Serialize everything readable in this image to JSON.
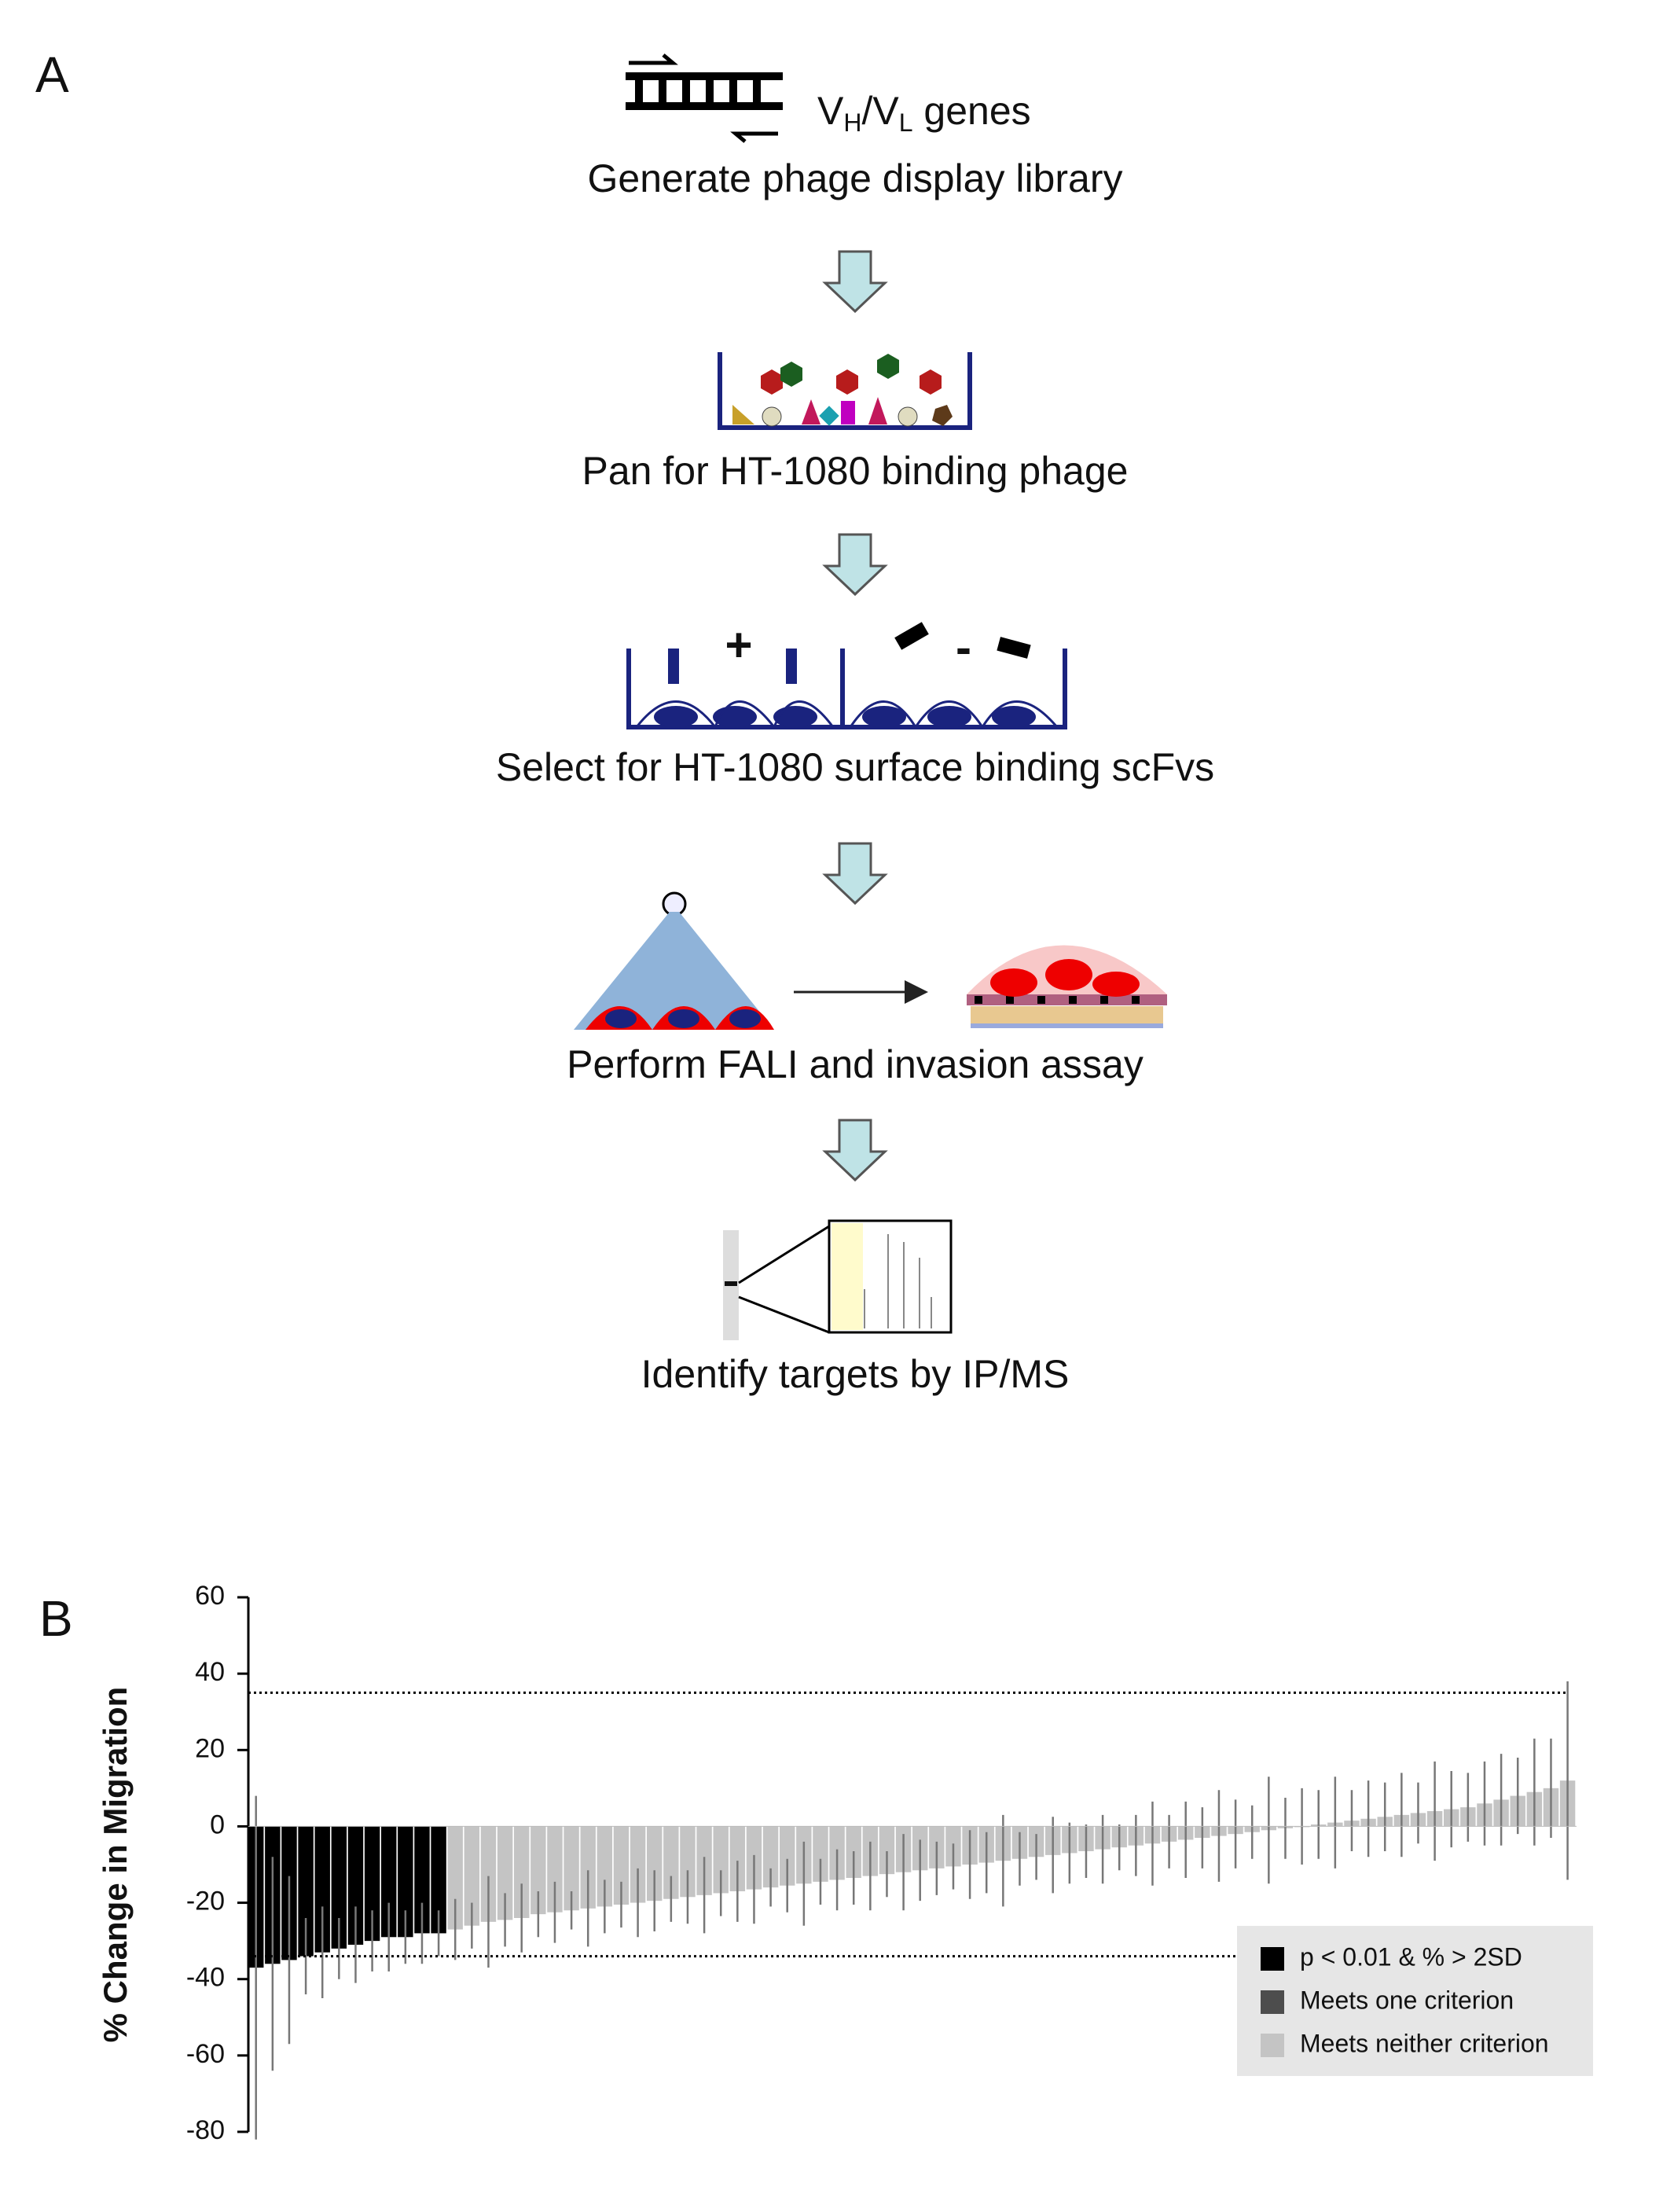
{
  "panel_a": {
    "label": "A",
    "gene_label": {
      "v1": "V",
      "h": "H",
      "slash_v": "/V",
      "l": "L",
      "genes": " genes"
    },
    "steps": [
      "Generate phage display library",
      "Pan for HT-1080 binding phage",
      "Select for HT-1080 surface binding scFvs",
      "Perform FALI and invasion assay",
      "Identify targets by IP/MS"
    ],
    "signs": [
      "+",
      "-"
    ]
  },
  "chart_data": {
    "type": "bar",
    "panel_label": "B",
    "y_label": "% Change in Migration",
    "ylim": [
      -80,
      60
    ],
    "yticks": [
      -80,
      -60,
      -40,
      -20,
      0,
      20,
      40,
      60
    ],
    "hlines": [
      35,
      -34
    ],
    "categories": [
      null,
      null,
      null,
      null,
      null,
      null,
      null,
      null,
      null,
      null,
      null,
      null,
      null,
      null,
      null,
      null,
      null,
      null,
      null,
      null,
      null,
      null,
      null,
      null,
      null,
      null,
      null,
      null,
      null,
      null,
      null,
      null,
      null,
      null,
      null,
      null,
      null,
      null,
      null,
      null,
      null,
      null,
      null,
      null,
      null,
      null,
      null,
      null,
      null,
      null,
      null,
      null,
      null,
      null,
      null,
      null,
      null,
      null,
      null,
      null,
      null,
      null,
      null,
      null,
      null,
      null,
      null,
      null,
      null,
      null,
      null,
      null,
      null,
      null,
      null,
      null,
      null,
      null,
      null,
      null
    ],
    "error_color": "#777777",
    "series": [
      {
        "name": "p < 0.01 & % > 2SD",
        "color": "#000000",
        "values": [
          -37,
          -36,
          -35,
          -34,
          -33,
          -32,
          -31,
          -30,
          -29,
          -29,
          -28,
          -28,
          null,
          null,
          null,
          null,
          null,
          null,
          null,
          null,
          null,
          null,
          null,
          null,
          null,
          null,
          null,
          null,
          null,
          null,
          null,
          null,
          null,
          null,
          null,
          null,
          null,
          null,
          null,
          null,
          null,
          null,
          null,
          null,
          null,
          null,
          null,
          null,
          null,
          null,
          null,
          null,
          null,
          null,
          null,
          null,
          null,
          null,
          null,
          null,
          null,
          null,
          null,
          null,
          null,
          null,
          null,
          null,
          null,
          null,
          null,
          null,
          null,
          null,
          null,
          null,
          null,
          null,
          null,
          null
        ],
        "errors": [
          45,
          28,
          22,
          10,
          12,
          8,
          10,
          8,
          9,
          7,
          8,
          6,
          null,
          null,
          null,
          null,
          null,
          null,
          null,
          null,
          null,
          null,
          null,
          null,
          null,
          null,
          null,
          null,
          null,
          null,
          null,
          null,
          null,
          null,
          null,
          null,
          null,
          null,
          null,
          null,
          null,
          null,
          null,
          null,
          null,
          null,
          null,
          null,
          null,
          null,
          null,
          null,
          null,
          null,
          null,
          null,
          null,
          null,
          null,
          null,
          null,
          null,
          null,
          null,
          null,
          null,
          null,
          null,
          null,
          null,
          null,
          null,
          null,
          null,
          null,
          null,
          null,
          null,
          null,
          null
        ]
      },
      {
        "name": "Meets one criterion",
        "color": "#4d4d4d",
        "values": [
          null,
          null,
          null,
          null,
          null,
          null,
          null,
          null,
          null,
          null,
          null,
          null,
          null,
          null,
          null,
          null,
          null,
          null,
          null,
          null,
          null,
          null,
          null,
          null,
          null,
          null,
          null,
          null,
          null,
          null,
          null,
          null,
          null,
          null,
          null,
          null,
          null,
          null,
          null,
          null,
          null,
          null,
          null,
          null,
          null,
          null,
          null,
          null,
          null,
          null,
          null,
          null,
          null,
          null,
          null,
          null,
          null,
          null,
          null,
          null,
          null,
          null,
          null,
          null,
          null,
          null,
          null,
          null,
          null,
          null,
          null,
          null,
          null,
          null,
          null,
          null,
          null,
          null,
          null,
          null
        ],
        "errors": [
          null,
          null,
          null,
          null,
          null,
          null,
          null,
          null,
          null,
          null,
          null,
          null,
          null,
          null,
          null,
          null,
          null,
          null,
          null,
          null,
          null,
          null,
          null,
          null,
          null,
          null,
          null,
          null,
          null,
          null,
          null,
          null,
          null,
          null,
          null,
          null,
          null,
          null,
          null,
          null,
          null,
          null,
          null,
          null,
          null,
          null,
          null,
          null,
          null,
          null,
          null,
          null,
          null,
          null,
          null,
          null,
          null,
          null,
          null,
          null,
          null,
          null,
          null,
          null,
          null,
          null,
          null,
          null,
          null,
          null,
          null,
          null,
          null,
          null,
          null,
          null,
          null,
          null,
          null,
          null
        ]
      },
      {
        "name": "Meets neither criterion",
        "color": "#c4c4c4",
        "values": [
          null,
          null,
          null,
          null,
          null,
          null,
          null,
          null,
          null,
          null,
          null,
          null,
          -27,
          -26,
          -25,
          -24.5,
          -24,
          -23,
          -22.5,
          -22,
          -21.5,
          -21,
          -20.5,
          -20,
          -19.5,
          -19,
          -18.5,
          -18,
          -17.5,
          -17,
          -16.5,
          -16,
          -15.5,
          -15,
          -14.5,
          -14,
          -13.5,
          -13,
          -12.5,
          -12,
          -11.5,
          -11,
          -10.5,
          -10,
          -9.5,
          -9,
          -8.5,
          -8,
          -7.5,
          -7,
          -6.5,
          -6,
          -5.5,
          -5,
          -4.5,
          -4,
          -3.5,
          -3,
          -2.5,
          -2,
          -1.5,
          -1,
          -0.5,
          0,
          0.5,
          1,
          1.5,
          2,
          2.5,
          3,
          3.5,
          4,
          4.5,
          5,
          6,
          7,
          8,
          9,
          10,
          12
        ],
        "errors": [
          null,
          null,
          null,
          null,
          null,
          null,
          null,
          null,
          null,
          null,
          null,
          null,
          8,
          6,
          12,
          7,
          9,
          6,
          8,
          5,
          10,
          7,
          6,
          9,
          8,
          6,
          7,
          10,
          6,
          8,
          9,
          5,
          7,
          11,
          6,
          8,
          7,
          9,
          6,
          10,
          8,
          7,
          6,
          9,
          8,
          12,
          7,
          6,
          10,
          8,
          7,
          9,
          6,
          8,
          11,
          7,
          10,
          8,
          12,
          9,
          7,
          14,
          8,
          10,
          9,
          12,
          8,
          10,
          9,
          11,
          8,
          13,
          10,
          9,
          11,
          12,
          10,
          14,
          13,
          26
        ]
      }
    ],
    "legend": "lower right"
  }
}
